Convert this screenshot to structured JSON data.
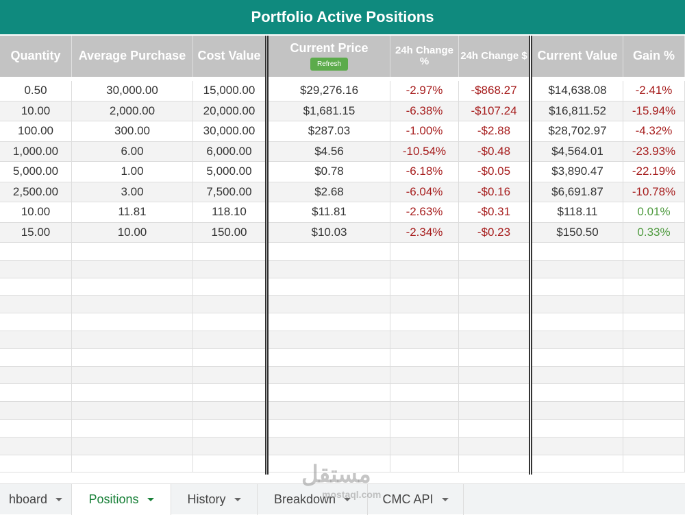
{
  "header": {
    "title": "Portfolio Active Positions",
    "refresh_button": "Refresh"
  },
  "table": {
    "columns": [
      "Quantity",
      "Average Purchase",
      "Cost Value",
      "Current Price",
      "24h Change %",
      "24h Change $",
      "Current Value",
      "Gain %"
    ],
    "rows": [
      [
        "0.50",
        "30,000.00",
        "15,000.00",
        "$29,276.16",
        "-2.97%",
        "-$868.27",
        "$14,638.08",
        "-2.41%"
      ],
      [
        "10.00",
        "2,000.00",
        "20,000.00",
        "$1,681.15",
        "-6.38%",
        "-$107.24",
        "$16,811.52",
        "-15.94%"
      ],
      [
        "100.00",
        "300.00",
        "30,000.00",
        "$287.03",
        "-1.00%",
        "-$2.88",
        "$28,702.97",
        "-4.32%"
      ],
      [
        "1,000.00",
        "6.00",
        "6,000.00",
        "$4.56",
        "-10.54%",
        "-$0.48",
        "$4,564.01",
        "-23.93%"
      ],
      [
        "5,000.00",
        "1.00",
        "5,000.00",
        "$0.78",
        "-6.18%",
        "-$0.05",
        "$3,890.47",
        "-22.19%"
      ],
      [
        "2,500.00",
        "3.00",
        "7,500.00",
        "$2.68",
        "-6.04%",
        "-$0.16",
        "$6,691.87",
        "-10.78%"
      ],
      [
        "10.00",
        "11.81",
        "118.10",
        "$11.81",
        "-2.63%",
        "-$0.31",
        "$118.11",
        "0.01%"
      ],
      [
        "15.00",
        "10.00",
        "150.00",
        "$10.03",
        "-2.34%",
        "-$0.23",
        "$150.50",
        "0.33%"
      ]
    ]
  },
  "sheet_tabs": [
    "hboard",
    "Positions",
    "History",
    "Breakdown",
    "CMC API"
  ],
  "active_tab": "Positions",
  "watermark": {
    "logo": "مستقل",
    "site": "mostaql.com"
  }
}
